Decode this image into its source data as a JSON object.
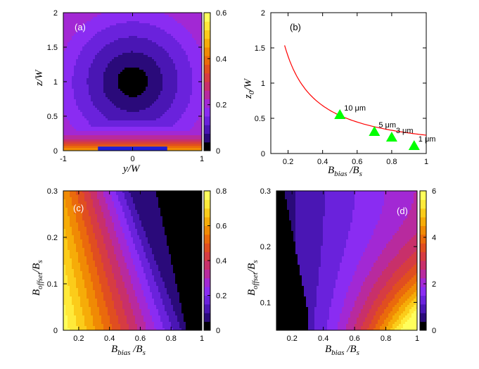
{
  "chart_data": [
    {
      "type": "heatmap",
      "panel_label": "(a)",
      "xlabel": "y/W",
      "ylabel": "z/W",
      "xlim": [
        -1,
        1
      ],
      "ylim": [
        0,
        2
      ],
      "xticks": [
        "-1",
        "0",
        "1"
      ],
      "yticks": [
        "0",
        "0.5",
        "1",
        "1.5",
        "2"
      ],
      "colorbar": {
        "range": [
          0,
          0.6
        ],
        "ticks": [
          "0",
          "0.2",
          "0.4",
          "0.6"
        ]
      },
      "field_minimum": {
        "y": 0,
        "z": 1.0
      },
      "wire": {
        "y_range": [
          -0.5,
          0.5
        ]
      }
    },
    {
      "type": "line",
      "panel_label": "(b)",
      "xlabel_main": "B",
      "xlabel_sub": "bias",
      "xlabel_tail": " /B",
      "xlabel_tail_sub": "s",
      "ylabel_main": "z",
      "ylabel_sub": "0",
      "ylabel_tail": "/W",
      "xlim": [
        0.1,
        1
      ],
      "ylim": [
        0,
        2
      ],
      "xticks": [
        "0.2",
        "0.4",
        "0.6",
        "0.8",
        "1"
      ],
      "yticks": [
        "0",
        "0.5",
        "1",
        "1.5",
        "2"
      ],
      "curve_color": "#ff0000",
      "marker_color": "#00ff00",
      "markers": [
        {
          "x": 0.5,
          "y": 0.55,
          "label": "10 μm"
        },
        {
          "x": 0.7,
          "y": 0.31,
          "label": "5 μm"
        },
        {
          "x": 0.8,
          "y": 0.23,
          "label": "3 μm"
        },
        {
          "x": 0.93,
          "y": 0.11,
          "label": "1 μm"
        }
      ]
    },
    {
      "type": "heatmap",
      "panel_label": "(c)",
      "xlabel_main": "B",
      "xlabel_sub": "bias",
      "xlabel_tail": " /B",
      "xlabel_tail_sub": "s",
      "ylabel_main": "B",
      "ylabel_sub": "offset",
      "ylabel_tail": "/B",
      "ylabel_tail_sub": "s",
      "xlim": [
        0.1,
        1
      ],
      "ylim": [
        0,
        0.3
      ],
      "xticks": [
        "0.2",
        "0.4",
        "0.6",
        "0.8",
        "1"
      ],
      "yticks": [
        "0",
        "0.1",
        "0.2",
        "0.3"
      ],
      "colorbar": {
        "range": [
          0,
          0.8
        ],
        "ticks": [
          "0",
          "0.2",
          "0.4",
          "0.6",
          "0.8"
        ]
      }
    },
    {
      "type": "heatmap",
      "panel_label": "(d)",
      "xlabel_main": "B",
      "xlabel_sub": "bias",
      "xlabel_tail": " /B",
      "xlabel_tail_sub": "s",
      "ylabel_main": "B",
      "ylabel_sub": "offset",
      "ylabel_tail": "/B",
      "ylabel_tail_sub": "s",
      "xlim": [
        0.1,
        1
      ],
      "ylim": [
        0.05,
        0.3
      ],
      "xticks": [
        "0.2",
        "0.4",
        "0.6",
        "0.8",
        "1"
      ],
      "yticks": [
        "0.1",
        "0.2",
        "0.3"
      ],
      "colorbar": {
        "range": [
          0,
          6
        ],
        "ticks": [
          "0",
          "2",
          "4",
          "6"
        ]
      }
    }
  ],
  "colormap": [
    "#000000",
    "#2a0a7a",
    "#4a16b4",
    "#6a22dc",
    "#8a2cf2",
    "#a228d4",
    "#b82a9e",
    "#c8306a",
    "#d63c42",
    "#e04e20",
    "#ea6a0c",
    "#f08a04",
    "#f6ac08",
    "#fbcc1a",
    "#ffea3a",
    "#ffff5c"
  ]
}
